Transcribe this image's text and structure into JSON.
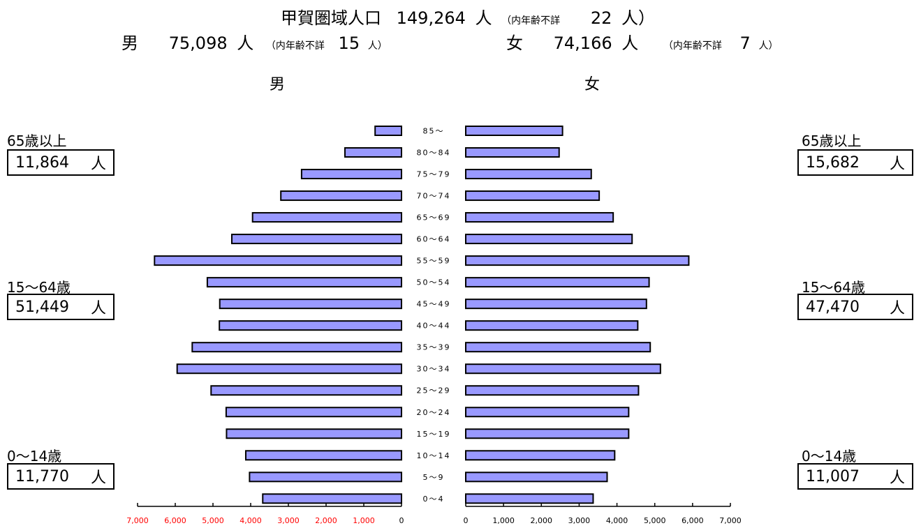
{
  "header": {
    "total_label": "甲賀圏域人口",
    "total_value": "149,264",
    "unit": "人",
    "unknown_prefix": "（内年齢不詳",
    "total_unknown": "22",
    "unknown_suffix": "人）",
    "male_label": "男",
    "male_value": "75,098",
    "male_unknown": "15",
    "female_label": "女",
    "female_value": "74,166",
    "female_unknown": "7"
  },
  "side_headers": {
    "male": "男",
    "female": "女"
  },
  "groups": {
    "male": [
      {
        "label": "65歳以上",
        "value": "11,864",
        "unit": "人"
      },
      {
        "label": "15～64歳",
        "value": "51,449",
        "unit": "人"
      },
      {
        "label": "0～14歳",
        "value": "11,770",
        "unit": "人"
      }
    ],
    "female": [
      {
        "label": "65歳以上",
        "value": "15,682",
        "unit": "人"
      },
      {
        "label": "15～64歳",
        "value": "47,470",
        "unit": "人"
      },
      {
        "label": "0～14歳",
        "value": "11,007",
        "unit": "人"
      }
    ]
  },
  "colors": {
    "bar_fill": "#9999ff",
    "bar_stroke": "#000000",
    "left_tick_color": "#ff0000"
  },
  "chart_data": {
    "type": "bar",
    "orientation": "horizontal-population-pyramid",
    "categories": [
      "85～",
      "80～84",
      "75～79",
      "70～74",
      "65～69",
      "60～64",
      "55～59",
      "50～54",
      "45～49",
      "40～44",
      "35～39",
      "30～34",
      "25～29",
      "20～24",
      "15～19",
      "10～14",
      "5～9",
      "0～4"
    ],
    "series": [
      {
        "name": "男",
        "values": [
          700,
          1500,
          2650,
          3200,
          3950,
          4500,
          6550,
          5150,
          4820,
          4830,
          5550,
          5950,
          5050,
          4650,
          4640,
          4130,
          4030,
          3680
        ]
      },
      {
        "name": "女",
        "values": [
          2560,
          2470,
          3320,
          3530,
          3900,
          4400,
          5900,
          4850,
          4780,
          4550,
          4880,
          5150,
          4570,
          4310,
          4310,
          3940,
          3740,
          3370
        ]
      }
    ],
    "xlim_male": [
      0,
      7000
    ],
    "xlim_female": [
      0,
      7000
    ],
    "left_tick_labels": [
      "7,000",
      "6,000",
      "5,000",
      "4,000",
      "3,000",
      "2,000",
      "1,000",
      "0"
    ],
    "right_tick_labels": [
      "0",
      "1,000",
      "2,000",
      "3,000",
      "4,000",
      "5,000",
      "6,000",
      "7,000"
    ]
  }
}
